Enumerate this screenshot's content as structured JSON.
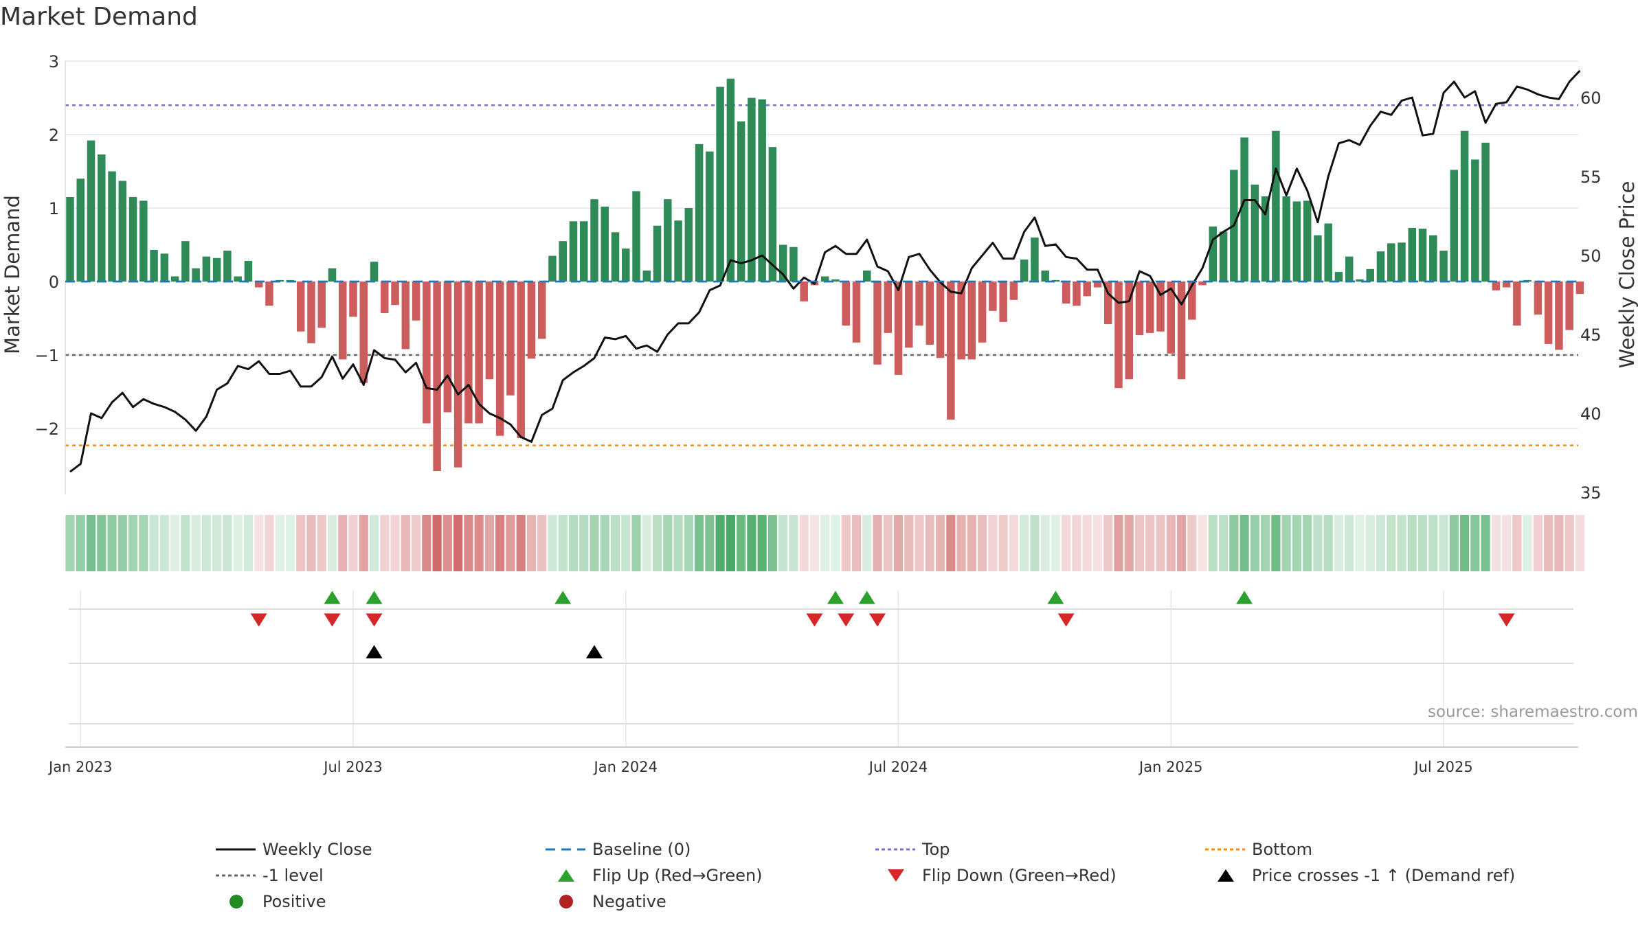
{
  "title": "Market Demand",
  "source": "source: sharemaestro.com",
  "colors": {
    "positive": "#2e8b57",
    "negative": "#cd5c5c",
    "close": "#111111",
    "baseline": "#1f77b4",
    "top": "#7b6fd6",
    "bottom": "#ff8c00",
    "minus_one": "#666666",
    "flip_up": "#2ca02c",
    "flip_down": "#d62728",
    "cross": "#000000",
    "grid": "#e6e6e6"
  },
  "legend": [
    {
      "key": "close",
      "label": "Weekly Close"
    },
    {
      "key": "baseline",
      "label": "Baseline (0)"
    },
    {
      "key": "top",
      "label": "Top"
    },
    {
      "key": "bottom",
      "label": "Bottom"
    },
    {
      "key": "minus_one",
      "label": "-1 level"
    },
    {
      "key": "flip_up",
      "label": "Flip Up (Red→Green)"
    },
    {
      "key": "flip_down",
      "label": "Flip Down (Green→Red)"
    },
    {
      "key": "cross",
      "label": "Price crosses -1 ↑ (Demand ref)"
    },
    {
      "key": "positive",
      "label": "Positive"
    },
    {
      "key": "negative",
      "label": "Negative"
    }
  ],
  "chart_data": {
    "type": "bar",
    "title": "Market Demand",
    "ylabel": "Market Demand",
    "y2label": "Weekly Close Price",
    "ylim": [
      -2.9,
      3
    ],
    "y2lim": [
      35,
      62
    ],
    "yticks": [
      3,
      2,
      1,
      0,
      -1,
      -2
    ],
    "ytick_labels": [
      "3",
      "2",
      "1",
      "0",
      "−1",
      "−2"
    ],
    "y2ticks": [
      60,
      55,
      50,
      45,
      40,
      35
    ],
    "levels": {
      "top": 2.4,
      "bottom": -2.23,
      "minus_one": -1.0,
      "baseline": 0
    },
    "x_start": "2022-12-26",
    "x_ticks": [
      {
        "label": "Jan 2023",
        "week": 1
      },
      {
        "label": "Jul 2023",
        "week": 27
      },
      {
        "label": "Jan 2024",
        "week": 53
      },
      {
        "label": "Jul 2024",
        "week": 79
      },
      {
        "label": "Jan 2025",
        "week": 105
      },
      {
        "label": "Jul 2025",
        "week": 131
      }
    ],
    "series": [
      {
        "name": "Market Demand",
        "axis": "left",
        "values": [
          1.15,
          1.4,
          1.92,
          1.73,
          1.5,
          1.37,
          1.15,
          1.1,
          0.43,
          0.38,
          0.07,
          0.55,
          0.18,
          0.34,
          0.32,
          0.42,
          0.07,
          0.28,
          -0.08,
          -0.33,
          0.02,
          0.02,
          -0.68,
          -0.84,
          -0.63,
          0.18,
          -1.06,
          -0.48,
          -1.38,
          0.27,
          -0.43,
          -0.32,
          -0.92,
          -0.53,
          -1.93,
          -2.58,
          -1.78,
          -2.53,
          -1.93,
          -1.93,
          -1.33,
          -2.1,
          -1.55,
          -2.13,
          -1.05,
          -0.78,
          0.35,
          0.55,
          0.82,
          0.82,
          1.12,
          1.02,
          0.67,
          0.45,
          1.23,
          0.15,
          0.76,
          1.12,
          0.83,
          1.0,
          1.87,
          1.77,
          2.65,
          2.76,
          2.18,
          2.5,
          2.48,
          1.83,
          0.5,
          0.47,
          -0.27,
          -0.05,
          0.07,
          0.03,
          -0.6,
          -0.83,
          0.15,
          -1.13,
          -0.7,
          -1.27,
          -0.9,
          -0.6,
          -0.86,
          -1.04,
          -1.88,
          -1.06,
          -1.06,
          -0.83,
          -0.4,
          -0.55,
          -0.25,
          0.3,
          0.6,
          0.15,
          0.02,
          -0.3,
          -0.33,
          -0.2,
          -0.08,
          -0.58,
          -1.45,
          -1.33,
          -0.73,
          -0.7,
          -0.68,
          -0.98,
          -1.33,
          -0.52,
          -0.05,
          0.75,
          0.68,
          1.52,
          1.96,
          1.32,
          1.16,
          2.05,
          1.16,
          1.09,
          1.1,
          0.63,
          0.79,
          0.13,
          0.34,
          0.03,
          0.17,
          0.41,
          0.52,
          0.53,
          0.73,
          0.72,
          0.63,
          0.42,
          1.52,
          2.05,
          1.66,
          1.89,
          -0.12,
          -0.08,
          -0.6,
          0.02,
          -0.45,
          -0.85,
          -0.93,
          -0.66,
          -0.17
        ]
      },
      {
        "name": "Weekly Close",
        "axis": "right",
        "values": [
          36.3,
          36.8,
          40.0,
          39.7,
          40.7,
          41.3,
          40.4,
          40.9,
          40.6,
          40.4,
          40.1,
          39.6,
          38.9,
          39.8,
          41.5,
          41.9,
          43.0,
          42.8,
          43.3,
          42.5,
          42.5,
          42.7,
          41.7,
          41.7,
          42.3,
          43.6,
          42.2,
          43.1,
          41.8,
          44.0,
          43.5,
          43.4,
          42.6,
          43.2,
          41.6,
          41.5,
          42.4,
          41.2,
          41.8,
          40.6,
          40.0,
          39.7,
          39.3,
          38.5,
          38.2,
          39.9,
          40.3,
          42.1,
          42.6,
          43.0,
          43.5,
          44.8,
          44.7,
          44.9,
          44.1,
          44.3,
          43.9,
          45.0,
          45.7,
          45.7,
          46.4,
          47.8,
          48.1,
          49.7,
          49.5,
          49.7,
          50.0,
          49.4,
          48.8,
          47.9,
          48.6,
          48.2,
          50.2,
          50.6,
          50.1,
          50.1,
          51.0,
          49.3,
          49.0,
          47.8,
          49.9,
          50.1,
          49.1,
          48.3,
          47.7,
          47.6,
          49.2,
          50.0,
          50.8,
          49.8,
          49.8,
          51.5,
          52.4,
          50.6,
          50.7,
          49.9,
          49.8,
          49.1,
          49.1,
          47.6,
          47.0,
          47.1,
          49.0,
          48.7,
          47.5,
          47.9,
          46.9,
          48.1,
          49.2,
          51.0,
          51.5,
          51.9,
          53.5,
          53.5,
          52.6,
          55.5,
          53.8,
          55.5,
          54.1,
          52.1,
          55.0,
          57.1,
          57.3,
          57.0,
          58.2,
          59.1,
          58.9,
          59.8,
          60.0,
          57.6,
          57.7,
          60.3,
          61.0,
          60.0,
          60.4,
          58.4,
          59.6,
          59.7,
          60.7,
          60.5,
          60.2,
          60.0,
          59.9,
          61.0,
          61.7
        ]
      }
    ],
    "flip_up_weeks": [
      25,
      29,
      47,
      73,
      76,
      94,
      112
    ],
    "flip_down_weeks": [
      18,
      25,
      29,
      71,
      74,
      77,
      95,
      137
    ],
    "cross_up_weeks": [
      29,
      50
    ]
  }
}
